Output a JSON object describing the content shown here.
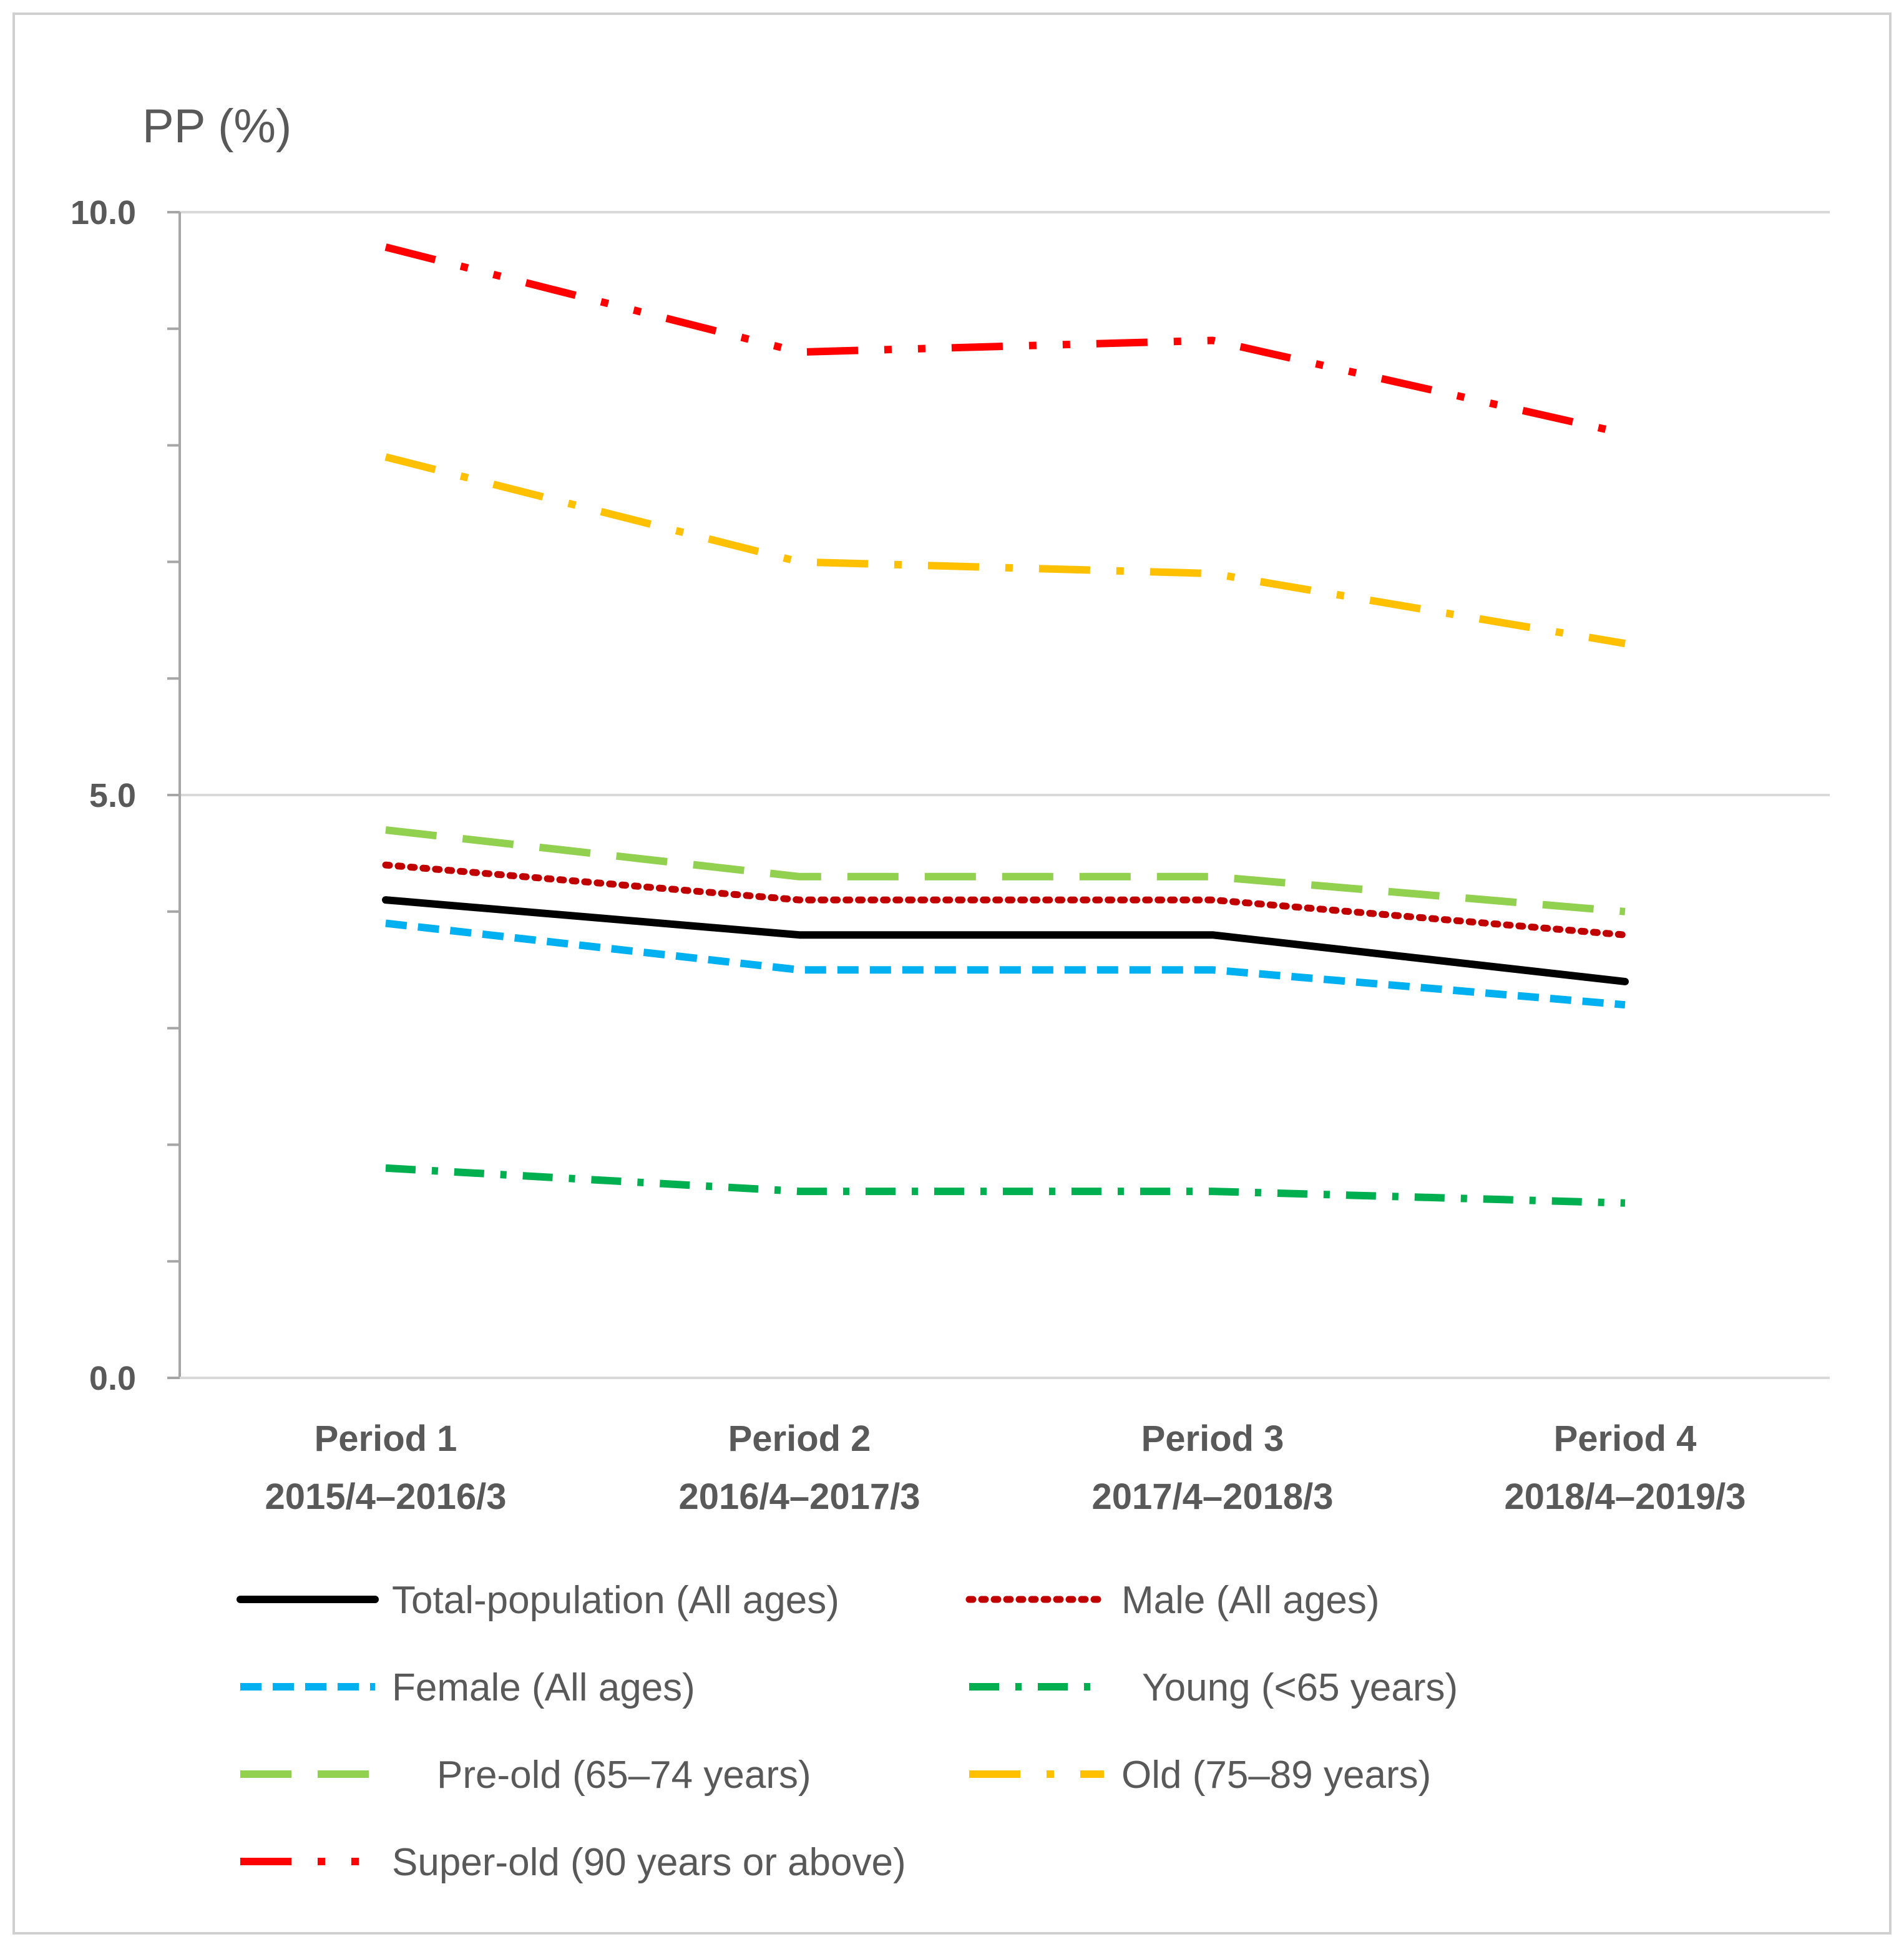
{
  "chart_data": {
    "type": "line",
    "ylabel": "PP (%)",
    "ylim": [
      0,
      10
    ],
    "yticks": [
      "0.0",
      "5.0",
      "10.0"
    ],
    "categories": [
      [
        "Period 1",
        "2015/4–2016/3"
      ],
      [
        "Period 2",
        "2016/4–2017/3"
      ],
      [
        "Period 3",
        "2017/4–2018/3"
      ],
      [
        "Period 4",
        "2018/4–2019/3"
      ]
    ],
    "series": [
      {
        "name": "Total-population (All ages)",
        "color": "#000000",
        "dash": "solid",
        "values": [
          4.1,
          3.8,
          3.8,
          3.4
        ]
      },
      {
        "name": "Male (All ages)",
        "color": "#C00000",
        "dash": "dot",
        "values": [
          4.4,
          4.1,
          4.1,
          3.8
        ]
      },
      {
        "name": "Female (All ages)",
        "color": "#00B0F0",
        "dash": "dash",
        "values": [
          3.9,
          3.5,
          3.5,
          3.2
        ]
      },
      {
        "name": "Young (<65 years)",
        "color": "#00B050",
        "dash": "dashdot",
        "values": [
          1.8,
          1.6,
          1.6,
          1.5
        ]
      },
      {
        "name": "Pre-old (65–74 years)",
        "color": "#92D050",
        "dash": "longdash",
        "values": [
          4.7,
          4.3,
          4.3,
          4.0
        ]
      },
      {
        "name": "Old (75–89 years)",
        "color": "#FFC000",
        "dash": "longdashdot",
        "values": [
          7.9,
          7.0,
          6.9,
          6.3
        ]
      },
      {
        "name": "Super-old (90 years or above)",
        "color": "#FF0000",
        "dash": "longdashdotdot",
        "values": [
          9.7,
          8.8,
          8.9,
          8.1
        ]
      }
    ],
    "grid": true,
    "legend_position": "bottom"
  }
}
